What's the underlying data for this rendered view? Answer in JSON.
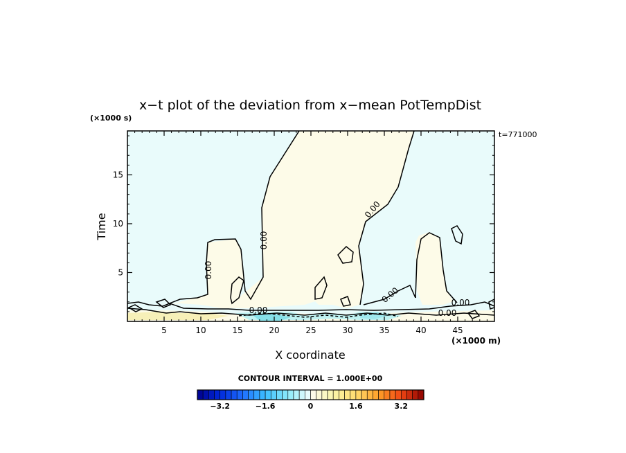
{
  "chart_data": {
    "type": "contour",
    "title": "x−t plot of the deviation from x−mean PotTempDist",
    "xlabel": "X coordinate",
    "xunit": "(×1000 m)",
    "ylabel": "Time",
    "yunit": "(×1000 s)",
    "time_stamp": "t=771000",
    "xlim": [
      0,
      50
    ],
    "ylim": [
      0,
      19.5
    ],
    "xticks": [
      5,
      10,
      15,
      20,
      25,
      30,
      35,
      40,
      45
    ],
    "xtick_labels": [
      "5",
      "10",
      "15",
      "20",
      "25",
      "30",
      "35",
      "40",
      "45"
    ],
    "yticks": [
      5,
      10,
      15
    ],
    "ytick_labels": [
      "5",
      "10",
      "15"
    ],
    "contour_interval_text": "CONTOUR INTERVAL = 1.000E+00",
    "contour_label": "0.00",
    "colorbar": {
      "range": [
        -4,
        4
      ],
      "step": 0.2,
      "ticks": [
        -3.2,
        -1.6,
        0,
        1.6,
        3.2
      ],
      "tick_labels": [
        "−3.2",
        "−1.6",
        "0",
        "1.6",
        "3.2"
      ]
    },
    "regions": [
      {
        "sign": "positive",
        "description_color": "#fdfbe8"
      },
      {
        "sign": "negative",
        "description_color": "#e9fbfb"
      }
    ],
    "colors": {
      "near_zero_negative": "#e9fbfb",
      "near_zero_positive": "#fdfbe8",
      "contour_line": "#000000"
    }
  }
}
